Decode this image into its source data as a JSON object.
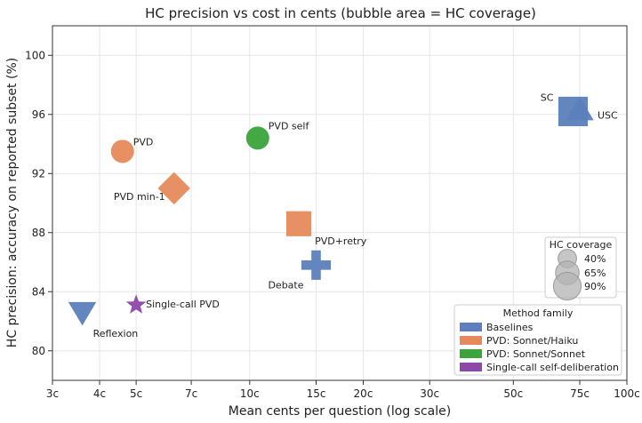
{
  "chart_data": {
    "type": "scatter",
    "title": "HC precision vs cost in cents (bubble area = HC coverage)",
    "xlabel": "Mean cents per question (log scale)",
    "ylabel": "HC precision: accuracy on reported subset (%)",
    "x_scale": "log",
    "xlim": [
      3,
      100
    ],
    "ylim": [
      78,
      102
    ],
    "x_ticks": [
      {
        "value": 3,
        "label": "3c"
      },
      {
        "value": 4,
        "label": "4c"
      },
      {
        "value": 5,
        "label": "5c"
      },
      {
        "value": 7,
        "label": "7c"
      },
      {
        "value": 10,
        "label": "10c"
      },
      {
        "value": 15,
        "label": "15c"
      },
      {
        "value": 20,
        "label": "20c"
      },
      {
        "value": 30,
        "label": "30c"
      },
      {
        "value": 50,
        "label": "50c"
      },
      {
        "value": 75,
        "label": "75c"
      },
      {
        "value": 100,
        "label": "100c"
      }
    ],
    "y_ticks": [
      {
        "value": 80,
        "label": "80"
      },
      {
        "value": 84,
        "label": "84"
      },
      {
        "value": 88,
        "label": "88"
      },
      {
        "value": 92,
        "label": "92"
      },
      {
        "value": 96,
        "label": "96"
      },
      {
        "value": 100,
        "label": "100"
      }
    ],
    "grid": true,
    "families": [
      {
        "name": "Baselines",
        "color": "#5b7fbc"
      },
      {
        "name": "PVD: Sonnet/Haiku",
        "color": "#e68a5c"
      },
      {
        "name": "PVD: Sonnet/Sonnet",
        "color": "#3aa33a"
      },
      {
        "name": "Single-call self-deliberation",
        "color": "#8e48a8"
      }
    ],
    "points": [
      {
        "label": "SC",
        "family": "Baselines",
        "marker": "square",
        "x": 72,
        "y": 96.2,
        "coverage": 0.9
      },
      {
        "label": "USC",
        "family": "Baselines",
        "marker": "triangle-up",
        "x": 75,
        "y": 96.2,
        "coverage": 0.65
      },
      {
        "label": "Debate",
        "family": "Baselines",
        "marker": "plus",
        "x": 15,
        "y": 85.8,
        "coverage": 0.65
      },
      {
        "label": "Reflexion",
        "family": "Baselines",
        "marker": "triangle-down",
        "x": 3.6,
        "y": 82.7,
        "coverage": 0.65
      },
      {
        "label": "PVD",
        "family": "PVD: Sonnet/Haiku",
        "marker": "circle",
        "x": 4.6,
        "y": 93.5,
        "coverage": 0.4
      },
      {
        "label": "PVD min-1",
        "family": "PVD: Sonnet/Haiku",
        "marker": "diamond",
        "x": 6.3,
        "y": 91.0,
        "coverage": 0.65
      },
      {
        "label": "PVD+retry",
        "family": "PVD: Sonnet/Haiku",
        "marker": "square",
        "x": 13.5,
        "y": 88.6,
        "coverage": 0.65
      },
      {
        "label": "PVD self",
        "family": "PVD: Sonnet/Sonnet",
        "marker": "circle",
        "x": 10.5,
        "y": 94.4,
        "coverage": 0.4
      },
      {
        "label": "Single-call PVD",
        "family": "Single-call self-deliberation",
        "marker": "star",
        "x": 5.0,
        "y": 83.1,
        "coverage": 0.2
      }
    ],
    "size_legend": {
      "title": "HC coverage",
      "entries": [
        {
          "label": "40%",
          "coverage": 0.4
        },
        {
          "label": "65%",
          "coverage": 0.65
        },
        {
          "label": "90%",
          "coverage": 0.9
        }
      ],
      "position": "right"
    },
    "family_legend": {
      "title": "Method family",
      "position": "lower-right"
    }
  }
}
